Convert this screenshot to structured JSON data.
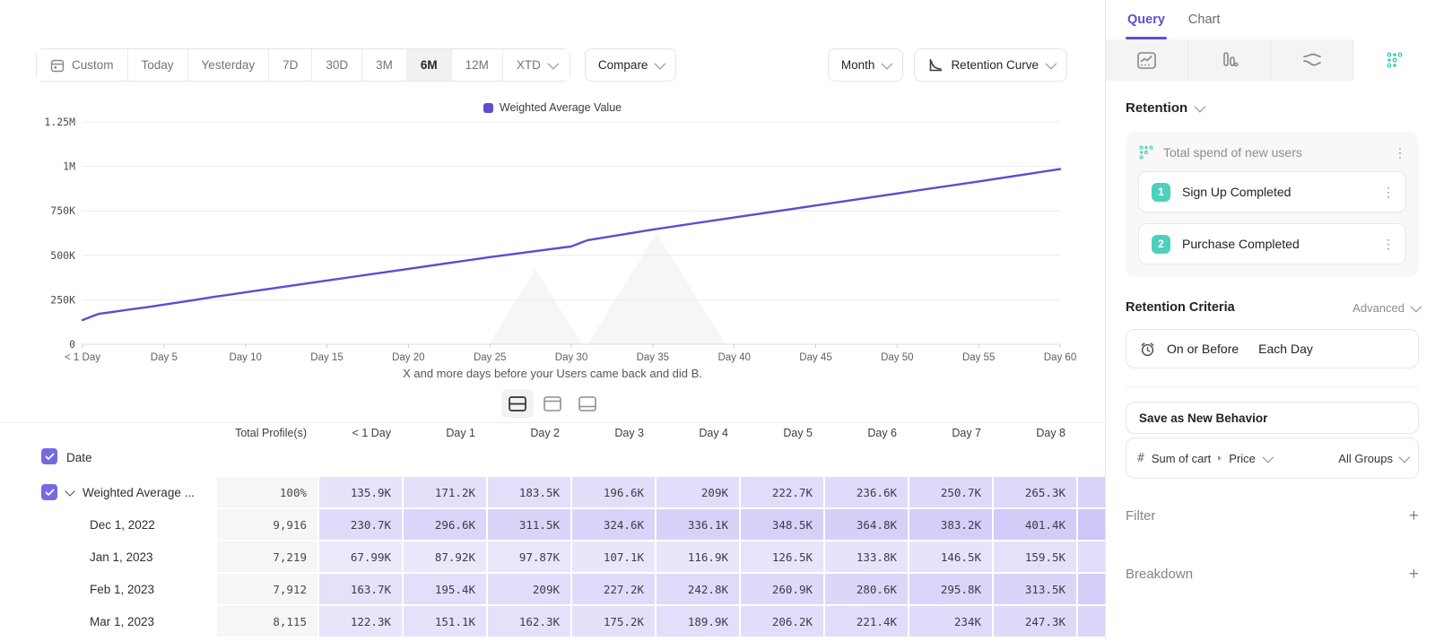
{
  "toolbar": {
    "ranges": [
      "Custom",
      "Today",
      "Yesterday",
      "7D",
      "30D",
      "3M",
      "6M",
      "12M",
      "XTD"
    ],
    "active_range": "6M",
    "compare_label": "Compare",
    "interval_label": "Month",
    "chart_type_label": "Retention Curve"
  },
  "chart": {
    "legend": "Weighted Average Value",
    "caption": "X and more days before your Users came back and did B.",
    "line_color": "#5a4ed2",
    "y_ticks": [
      "0",
      "250K",
      "500K",
      "750K",
      "1M",
      "1.25M"
    ],
    "x_ticks": [
      "< 1 Day",
      "Day 5",
      "Day 10",
      "Day 15",
      "Day 20",
      "Day 25",
      "Day 30",
      "Day 35",
      "Day 40",
      "Day 45",
      "Day 50",
      "Day 55",
      "Day 60"
    ]
  },
  "chart_data": {
    "type": "line",
    "title": "",
    "xlabel": "X and more days before your Users came back and did B.",
    "ylabel": "",
    "ylim_k": [
      0,
      1250
    ],
    "x_range_days": [
      0,
      60
    ],
    "x_tick_days": [
      0,
      5,
      10,
      15,
      20,
      25,
      30,
      35,
      40,
      45,
      50,
      55,
      60
    ],
    "grid": true,
    "legend_position": "top-center",
    "series": [
      {
        "name": "Weighted Average Value",
        "x_days": [
          0,
          1,
          2,
          3,
          4,
          5,
          6,
          7,
          8,
          10,
          15,
          20,
          25,
          30,
          31,
          35,
          40,
          45,
          50,
          55,
          60
        ],
        "values_k": [
          135.9,
          171.2,
          183.5,
          196.6,
          209,
          222.7,
          236.6,
          250.7,
          265.3,
          292,
          358,
          424,
          490,
          550,
          585,
          645,
          713,
          780,
          848,
          915,
          985
        ]
      }
    ]
  },
  "view_toggles": [
    "split-view",
    "chart-only-view",
    "table-only-view"
  ],
  "table": {
    "columns": [
      "Date",
      "Total Profile(s)",
      "< 1 Day",
      "Day 1",
      "Day 2",
      "Day 3",
      "Day 4",
      "Day 5",
      "Day 6",
      "Day 7",
      "Day 8"
    ],
    "rows": [
      {
        "date": "Weighted Average ...",
        "summary": true,
        "checked": true,
        "total": "100%",
        "values": [
          "135.9K",
          "171.2K",
          "183.5K",
          "196.6K",
          "209K",
          "222.7K",
          "236.6K",
          "250.7K",
          "265.3K"
        ]
      },
      {
        "date": "Dec 1, 2022",
        "total": "9,916",
        "values": [
          "230.7K",
          "296.6K",
          "311.5K",
          "324.6K",
          "336.1K",
          "348.5K",
          "364.8K",
          "383.2K",
          "401.4K"
        ]
      },
      {
        "date": "Jan 1, 2023",
        "total": "7,219",
        "values": [
          "67.99K",
          "87.92K",
          "97.87K",
          "107.1K",
          "116.9K",
          "126.5K",
          "133.8K",
          "146.5K",
          "159.5K"
        ]
      },
      {
        "date": "Feb 1, 2023",
        "total": "7,912",
        "values": [
          "163.7K",
          "195.4K",
          "209K",
          "227.2K",
          "242.8K",
          "260.9K",
          "280.6K",
          "295.8K",
          "313.5K"
        ]
      },
      {
        "date": "Mar 1, 2023",
        "total": "8,115",
        "values": [
          "122.3K",
          "151.1K",
          "162.3K",
          "175.2K",
          "189.9K",
          "206.2K",
          "221.4K",
          "234K",
          "247.3K"
        ]
      }
    ],
    "heat_color_rgb": "120,98,232"
  },
  "sidebar": {
    "tabs": [
      {
        "label": "Query",
        "active": true
      },
      {
        "label": "Chart",
        "active": false
      }
    ],
    "view_icons": [
      "insights-icon",
      "funnels-bar-icon",
      "flows-icon",
      "retention-dots-icon"
    ],
    "active_view_icon": "retention-dots-icon",
    "section_label": "Retention",
    "behavior": {
      "title": "Total spend of new users",
      "steps": [
        {
          "num": "1",
          "label": "Sign Up Completed"
        },
        {
          "num": "2",
          "label": "Purchase Completed"
        }
      ]
    },
    "criteria": {
      "title": "Retention Criteria",
      "mode": "Advanced",
      "condition": "On or Before",
      "period": "Each Day"
    },
    "save_behavior_label": "Save as New Behavior",
    "measure": {
      "hash": "#",
      "label": "Sum of cart",
      "property": "Price",
      "group": "All Groups"
    },
    "filter_label": "Filter",
    "breakdown_label": "Breakdown",
    "accent_color": "#5b4fd6",
    "teal_color": "#4fd0bd"
  }
}
